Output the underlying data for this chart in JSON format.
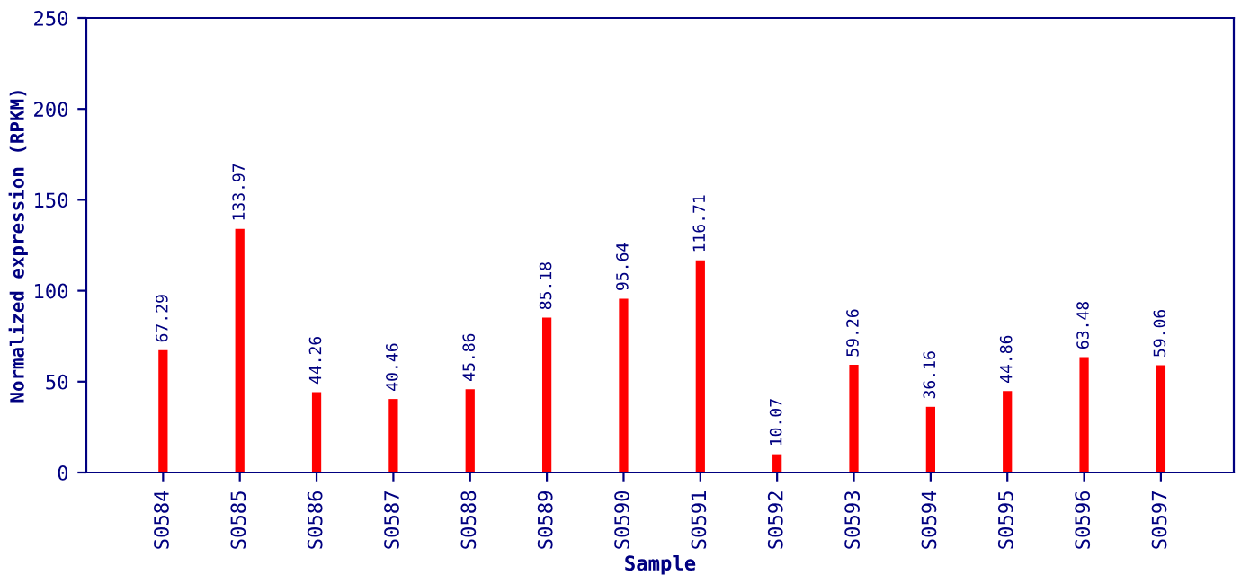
{
  "chart_data": {
    "type": "bar",
    "xlabel": "Sample",
    "ylabel": "Normalized expression (RPKM)",
    "categories": [
      "S0584",
      "S0585",
      "S0586",
      "S0587",
      "S0588",
      "S0589",
      "S0590",
      "S0591",
      "S0592",
      "S0593",
      "S0594",
      "S0595",
      "S0596",
      "S0597"
    ],
    "values": [
      67.29,
      133.97,
      44.26,
      40.46,
      45.86,
      85.18,
      95.64,
      116.71,
      10.07,
      59.26,
      36.16,
      44.86,
      63.48,
      59.06
    ],
    "color": "#ff0000",
    "ylim": [
      0,
      250
    ],
    "yticks": [
      0,
      50,
      100,
      150,
      200,
      250
    ],
    "data_labels": true,
    "grid": false,
    "legend": false
  }
}
